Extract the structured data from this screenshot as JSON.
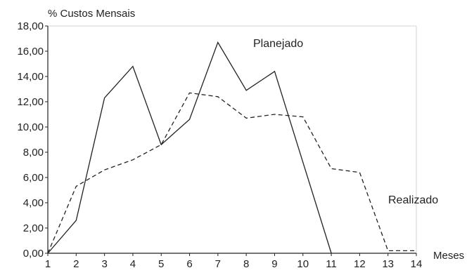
{
  "chart_data": {
    "type": "line",
    "title": "",
    "ylabel": "% Custos Mensais",
    "xlabel": "Meses",
    "x": [
      1,
      2,
      3,
      4,
      5,
      6,
      7,
      8,
      9,
      10,
      11,
      12,
      13,
      14
    ],
    "x_tick_labels": [
      "1",
      "2",
      "3",
      "4",
      "5",
      "6",
      "7",
      "8",
      "9",
      "10",
      "11",
      "12",
      "13",
      "14"
    ],
    "y_tick_labels": [
      "0,00",
      "2,00",
      "4,00",
      "6,00",
      "8,00",
      "10,00",
      "12,00",
      "14,00",
      "16,00",
      "18,00"
    ],
    "xlim": [
      1,
      14
    ],
    "ylim": [
      0,
      18
    ],
    "grid": false,
    "series": [
      {
        "name": "Planejado",
        "style": "solid",
        "color": "#222222",
        "x": [
          1,
          2,
          3,
          4,
          5,
          6,
          7,
          8,
          9,
          11
        ],
        "values": [
          0.0,
          2.6,
          12.3,
          14.8,
          8.6,
          10.6,
          16.7,
          12.9,
          14.4,
          0.0
        ]
      },
      {
        "name": "Realizado",
        "style": "dashed",
        "color": "#222222",
        "x": [
          1,
          2,
          3,
          4,
          5,
          6,
          7,
          8,
          9,
          10,
          11,
          12,
          13,
          14
        ],
        "values": [
          0.0,
          5.3,
          6.6,
          7.4,
          8.6,
          12.7,
          12.4,
          10.7,
          11.0,
          10.8,
          6.7,
          6.4,
          0.2,
          0.2
        ]
      }
    ]
  }
}
